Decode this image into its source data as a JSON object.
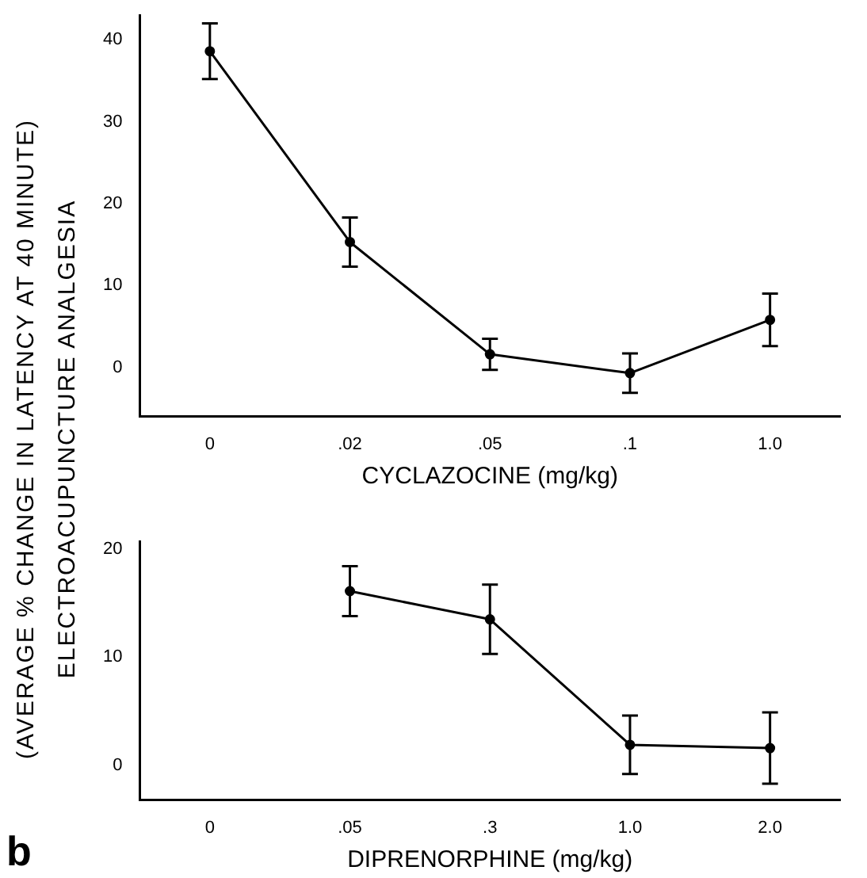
{
  "chart_data": [
    {
      "type": "line",
      "ylabel": "(AVERAGE % CHANGE IN LATENCY AT 40 MINUTE)\nELECTROACUPUNCTURE ANALGESIA",
      "xlabel": "CYCLAZOCINE (mg/kg)",
      "categories": [
        "0",
        ".02",
        ".05",
        ".1",
        "1.0"
      ],
      "series": [
        {
          "color": "#000000",
          "values": [
            38.6,
            15.3,
            1.6,
            -0.7,
            5.8
          ],
          "errors": [
            3.4,
            3,
            1.9,
            2.4,
            3.2
          ]
        }
      ],
      "ylim": [
        -6,
        43
      ],
      "yticks": [
        0,
        10,
        20,
        30,
        40
      ],
      "marker": "circle",
      "grid": false,
      "legend": false
    },
    {
      "type": "line",
      "xlabel": "DIPRENORPHINE (mg/kg)",
      "annotations": [
        "b"
      ],
      "categories": [
        "0",
        ".05",
        ".3",
        "1.0",
        "2.0"
      ],
      "series": [
        {
          "color": "#000000",
          "values": [
            null,
            16.1,
            13.5,
            1.9,
            1.6
          ],
          "errors": [
            null,
            2.3,
            3.2,
            2.7,
            3.3
          ]
        }
      ],
      "ylim": [
        -3.2,
        20.7
      ],
      "yticks": [
        0,
        10,
        20
      ],
      "marker": "circle",
      "grid": false,
      "legend": false
    }
  ]
}
